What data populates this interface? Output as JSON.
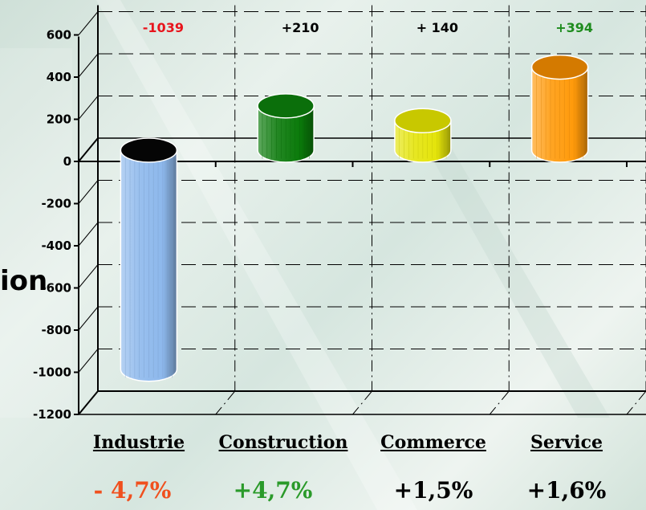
{
  "side_fragment": "ion",
  "chart_data": {
    "type": "bar",
    "style": "3d-cylinder",
    "categories": [
      "Industrie",
      "Construction",
      "Commerce",
      "Service"
    ],
    "values": [
      -1039,
      210,
      140,
      394
    ],
    "data_labels": [
      "-1039",
      "+210",
      "+ 140",
      "+394"
    ],
    "data_label_colors": [
      "#e8141c",
      "#000000",
      "#000000",
      "#1e8c1e"
    ],
    "bar_colors": [
      "#8db8ec",
      "#0a7a0a",
      "#e4e40a",
      "#ff9a0a"
    ],
    "top_colors": [
      "#050505",
      "#0b6f0b",
      "#c8c800",
      "#d47a00"
    ],
    "percent_labels": [
      "- 4,7%",
      "+4,7%",
      "+1,5%",
      "+1,6%"
    ],
    "percent_colors": [
      "#f0501e",
      "#2a9a2a",
      "#000000",
      "#000000"
    ],
    "yticks": [
      "600",
      "400",
      "200",
      "0",
      "-200",
      "-400",
      "-600",
      "-800",
      "-1000",
      "-1200"
    ],
    "ylim": [
      -1200,
      600
    ],
    "grid": true
  }
}
